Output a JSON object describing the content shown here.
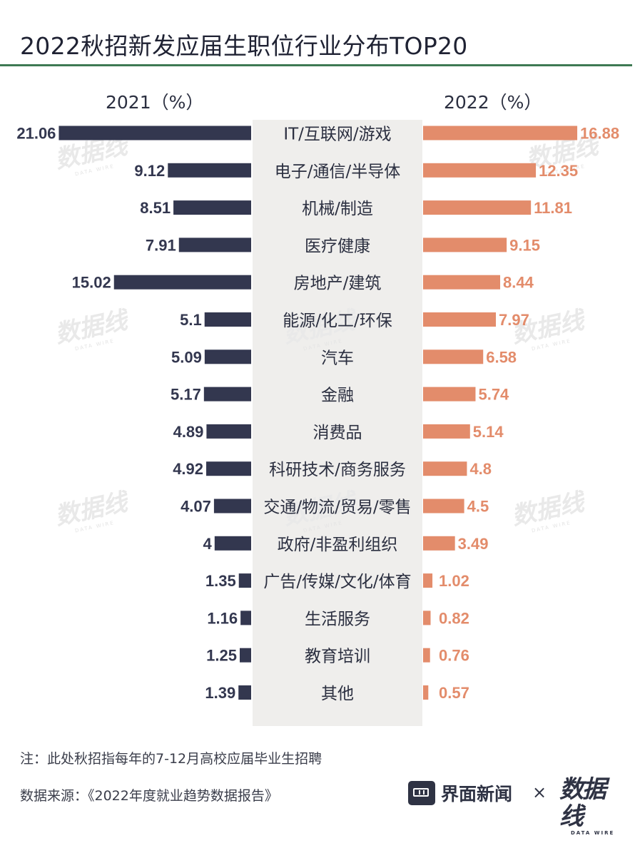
{
  "title": "2022秋招新发应届生职位行业分布TOP20",
  "left_header": "2021（%）",
  "right_header": "2022（%）",
  "chart_data": {
    "type": "bar",
    "categories": [
      "IT/互联网/游戏",
      "电子/通信/半导体",
      "机械/制造",
      "医疗健康",
      "房地产/建筑",
      "能源/化工/环保",
      "汽车",
      "金融",
      "消费品",
      "科研技术/商务服务",
      "交通/物流/贸易/零售",
      "政府/非盈利组织",
      "广告/传媒/文化/体育",
      "生活服务",
      "教育培训",
      "其他"
    ],
    "series": [
      {
        "name": "2021（%）",
        "values": [
          21.06,
          9.12,
          8.51,
          7.91,
          15.02,
          5.1,
          5.09,
          5.17,
          4.89,
          4.92,
          4.07,
          4,
          1.35,
          1.16,
          1.25,
          1.39
        ],
        "labels": [
          "21.06",
          "9.12",
          "8.51",
          "7.91",
          "15.02",
          "5.1",
          "5.09",
          "5.17",
          "4.89",
          "4.92",
          "4.07",
          "4",
          "1.35",
          "1.16",
          "1.25",
          "1.39"
        ],
        "color": "#33374f"
      },
      {
        "name": "2022（%）",
        "values": [
          16.88,
          12.35,
          11.81,
          9.15,
          8.44,
          7.97,
          6.58,
          5.74,
          5.14,
          4.8,
          4.5,
          3.49,
          1.02,
          0.82,
          0.76,
          0.57
        ],
        "labels": [
          "16.88",
          "12.35",
          "11.81",
          "9.15",
          "8.44",
          "7.97",
          "6.58",
          "5.74",
          "5.14",
          "4.8",
          "4.5",
          "3.49",
          "1.02",
          "0.82",
          "0.76",
          "0.57"
        ],
        "color": "#e38c6b"
      }
    ]
  },
  "footnote": "注：此处秋招指每年的7-12月高校应届毕业生招聘",
  "source": "数据来源：《2022年度就业趋势数据报告》",
  "brand_primary": "界面新闻",
  "brand_separator": "×",
  "brand_secondary": "数据线",
  "brand_secondary_sub": "DATA WIRE",
  "watermark_text": "数据线",
  "watermark_sub": "DATA WIRE",
  "colors": {
    "left_bar": "#33374f",
    "right_bar": "#e38c6b",
    "title_rule": "#3e7a53",
    "center_panel": "#efeeec"
  }
}
